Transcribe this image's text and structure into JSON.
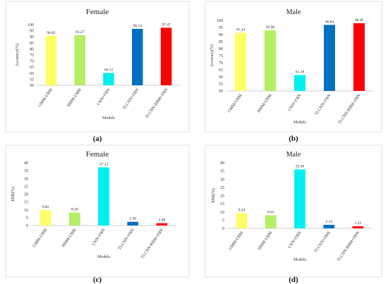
{
  "chart_data": [
    {
      "type": "bar",
      "title": "Female",
      "sub_label": "(a)",
      "xlabel": "Models",
      "ylabel": "Accuracy(%)",
      "ylim": [
        50,
        100
      ],
      "ytick_step": 5,
      "categories": [
        "GMM-UBM",
        "HMM-UBM",
        "CNN+FBN",
        "TLCNN+FBN",
        "TLCNN-RBM+FBN"
      ],
      "values": [
        90.82,
        91.27,
        60.12,
        96.54,
        97.47
      ],
      "value_labels": [
        "90.82",
        "91.27",
        "60.12",
        "96.54",
        "97.47"
      ],
      "colors": [
        "#ffff66",
        "#b4f064",
        "#00f0f0",
        "#0070c0",
        "#ff0000"
      ],
      "grid": false
    },
    {
      "type": "bar",
      "title": "Male",
      "sub_label": "(b)",
      "xlabel": "Models",
      "ylabel": "Accuracy(%)",
      "ylim": [
        50,
        100
      ],
      "ytick_step": 5,
      "categories": [
        "GMM-UBM",
        "HMM-UBM",
        "CNN+FBN",
        "TLCNN+FBN",
        "TLCNN-RBM+FBN"
      ],
      "values": [
        91.24,
        92.96,
        61.28,
        96.84,
        98.05
      ],
      "value_labels": [
        "91.24",
        "92.96",
        "61.28",
        "96.84",
        "98.05"
      ],
      "colors": [
        "#ffff66",
        "#b4f064",
        "#00f0f0",
        "#0070c0",
        "#ff0000"
      ],
      "grid": false
    },
    {
      "type": "bar",
      "title": "Female",
      "sub_label": "(c)",
      "xlabel": "Models",
      "ylabel": "EER(%)",
      "ylim": [
        0,
        40
      ],
      "ytick_step": 5,
      "categories": [
        "GMM-UBM",
        "HMM-UBM",
        "CNN+FBN",
        "TLCNN+FBN",
        "TLCNN-RBM+FBN"
      ],
      "values": [
        9.82,
        8.26,
        37.12,
        2.36,
        1.48
      ],
      "value_labels": [
        "9.82",
        "8.26",
        "37.12",
        "2.36",
        "1.48"
      ],
      "colors": [
        "#ffff66",
        "#b4f064",
        "#00f0f0",
        "#0070c0",
        "#ff0000"
      ],
      "grid": false
    },
    {
      "type": "bar",
      "title": "Male",
      "sub_label": "(d)",
      "xlabel": "Models",
      "ylabel": "EER(%)",
      "ylim": [
        0,
        40
      ],
      "ytick_step": 5,
      "categories": [
        "GMM-UBM",
        "HMM-UBM",
        "CNN+FBN",
        "TLCNN+FBN",
        "TLCNN-RBM+FBN"
      ],
      "values": [
        9.24,
        8.01,
        35.96,
        2.14,
        1.25
      ],
      "value_labels": [
        "9.24",
        "8.01",
        "35.96",
        "2.14",
        "1.25"
      ],
      "colors": [
        "#ffff66",
        "#b4f064",
        "#00f0f0",
        "#0070c0",
        "#ff0000"
      ],
      "grid": false
    }
  ]
}
